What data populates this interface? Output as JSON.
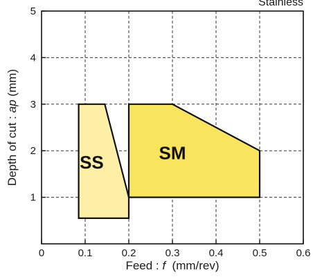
{
  "chart_data": {
    "type": "area",
    "title": "",
    "corner_note": "Stainless",
    "xlabel_prefix": "Feed : ",
    "xlabel_var": "f",
    "xlabel_unit": "  (mm/rev)",
    "ylabel_prefix": "Depth of cut : ",
    "ylabel_var": "ap",
    "ylabel_unit": " (mm)",
    "xlim": [
      0,
      0.6
    ],
    "ylim": [
      0,
      5
    ],
    "xticks": [
      0,
      0.1,
      0.2,
      0.3,
      0.4,
      0.5,
      0.6
    ],
    "xtick_labels": [
      "0",
      "0.1",
      "0.2",
      "0.3",
      "0.4",
      "0.5",
      "0.6"
    ],
    "yticks": [
      1,
      2,
      3,
      4,
      5
    ],
    "ytick_labels": [
      "1",
      "2",
      "3",
      "4",
      "5"
    ],
    "grid": true,
    "regions": [
      {
        "label": "SS",
        "color": "#fdf0a6",
        "polygon": [
          [
            0.085,
            3.0
          ],
          [
            0.145,
            3.0
          ],
          [
            0.2,
            1.0
          ],
          [
            0.2,
            0.55
          ],
          [
            0.085,
            0.55
          ]
        ],
        "label_at": [
          0.115,
          1.75
        ]
      },
      {
        "label": "SM",
        "color": "#f9e45e",
        "polygon": [
          [
            0.2,
            3.0
          ],
          [
            0.3,
            3.0
          ],
          [
            0.5,
            2.0
          ],
          [
            0.5,
            1.0
          ],
          [
            0.2,
            1.0
          ]
        ],
        "label_at": [
          0.3,
          1.95
        ]
      }
    ]
  }
}
